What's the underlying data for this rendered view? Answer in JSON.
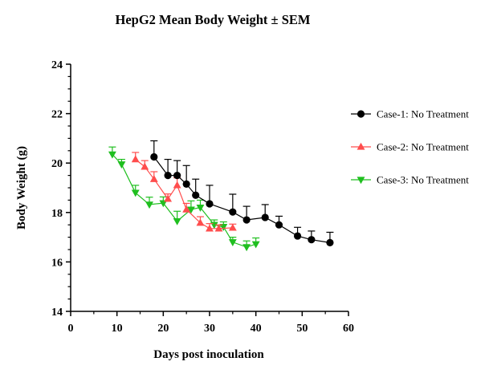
{
  "chart_data": {
    "type": "line",
    "title": "HepG2 Mean Body Weight ± SEM",
    "xlabel": "Days post inoculation",
    "ylabel": "Body Weight (g)",
    "xlim": [
      0,
      60
    ],
    "ylim": [
      14,
      24
    ],
    "xticks": [
      "0",
      "10",
      "20",
      "30",
      "40",
      "50",
      "60"
    ],
    "yticks": [
      "14",
      "16",
      "18",
      "20",
      "22",
      "24"
    ],
    "grid": false,
    "legend_position": "right",
    "error_bars": "SEM (upper only)",
    "series": [
      {
        "name": "Case-1: No Treatment",
        "color": "#000000",
        "marker": "circle",
        "x": [
          18,
          21,
          23,
          25,
          27,
          30,
          35,
          38,
          42,
          45,
          49,
          52,
          56
        ],
        "y": [
          20.25,
          19.5,
          19.5,
          19.15,
          18.7,
          18.35,
          18.02,
          17.7,
          17.8,
          17.5,
          17.05,
          16.9,
          16.78
        ],
        "sem": [
          0.65,
          0.65,
          0.6,
          0.75,
          0.65,
          0.75,
          0.72,
          0.55,
          0.52,
          0.35,
          0.35,
          0.35,
          0.42
        ]
      },
      {
        "name": "Case-2: No Treatment",
        "color": "#ff4d4d",
        "marker": "triangle-up",
        "x": [
          14,
          16,
          18,
          21,
          23,
          25,
          28,
          30,
          32,
          35
        ],
        "y": [
          20.15,
          19.85,
          19.35,
          18.55,
          19.1,
          18.12,
          17.58,
          17.35,
          17.35,
          17.38
        ],
        "sem": [
          0.28,
          0.25,
          0.3,
          0.2,
          0.3,
          0.25,
          0.25,
          0.2,
          0.15,
          0.15
        ]
      },
      {
        "name": "Case-3: No Treatment",
        "color": "#1fbf1f",
        "marker": "triangle-down",
        "x": [
          9,
          11,
          14,
          17,
          20,
          23,
          26,
          28,
          31,
          33,
          35,
          38,
          40
        ],
        "y": [
          20.35,
          19.95,
          18.8,
          18.32,
          18.38,
          17.65,
          18.12,
          18.2,
          17.5,
          17.42,
          16.8,
          16.6,
          16.72
        ],
        "sem": [
          0.3,
          0.2,
          0.3,
          0.3,
          0.25,
          0.4,
          0.35,
          0.3,
          0.2,
          0.2,
          0.2,
          0.25,
          0.25
        ]
      }
    ]
  }
}
